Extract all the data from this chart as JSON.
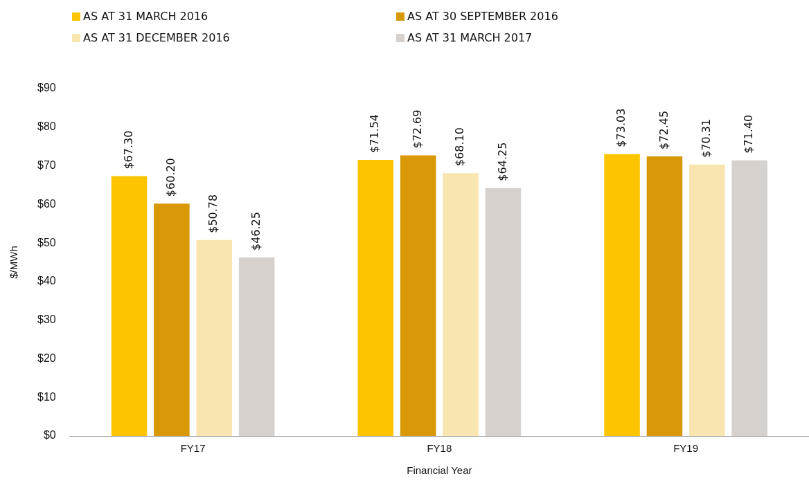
{
  "chart_data": {
    "type": "bar",
    "xlabel": "Financial Year",
    "ylabel": "$/MWh",
    "categories": [
      "FY17",
      "FY18",
      "FY19"
    ],
    "series": [
      {
        "name": "AS AT 31 MARCH 2016",
        "color": "#fcc500",
        "values": [
          67.3,
          71.54,
          73.03
        ],
        "value_labels": [
          "$67.30",
          "$71.54",
          "$73.03"
        ]
      },
      {
        "name": "AS AT 30 SEPTEMBER 2016",
        "color": "#d89808",
        "values": [
          60.2,
          72.69,
          72.45
        ],
        "value_labels": [
          "$60.20",
          "$72.69",
          "$72.45"
        ]
      },
      {
        "name": "AS AT 31 DECEMBER 2016",
        "color": "#f9e5b0",
        "values": [
          50.78,
          68.1,
          70.31
        ],
        "value_labels": [
          "$50.78",
          "$68.10",
          "$70.31"
        ]
      },
      {
        "name": "AS AT 31 MARCH 2017",
        "color": "#d6d1cd",
        "values": [
          46.25,
          64.25,
          71.4
        ],
        "value_labels": [
          "$46.25",
          "$64.25",
          "$71.40"
        ]
      }
    ],
    "ylim": [
      0,
      90
    ],
    "yticks": [
      {
        "value": 0,
        "label": "$0"
      },
      {
        "value": 10,
        "label": "$10"
      },
      {
        "value": 20,
        "label": "$20"
      },
      {
        "value": 30,
        "label": "$30"
      },
      {
        "value": 40,
        "label": "$40"
      },
      {
        "value": 50,
        "label": "$50"
      },
      {
        "value": 60,
        "label": "$60"
      },
      {
        "value": 70,
        "label": "$70"
      },
      {
        "value": 80,
        "label": "$80"
      },
      {
        "value": 90,
        "label": "$90"
      }
    ],
    "grid": false,
    "legend": "top left"
  }
}
